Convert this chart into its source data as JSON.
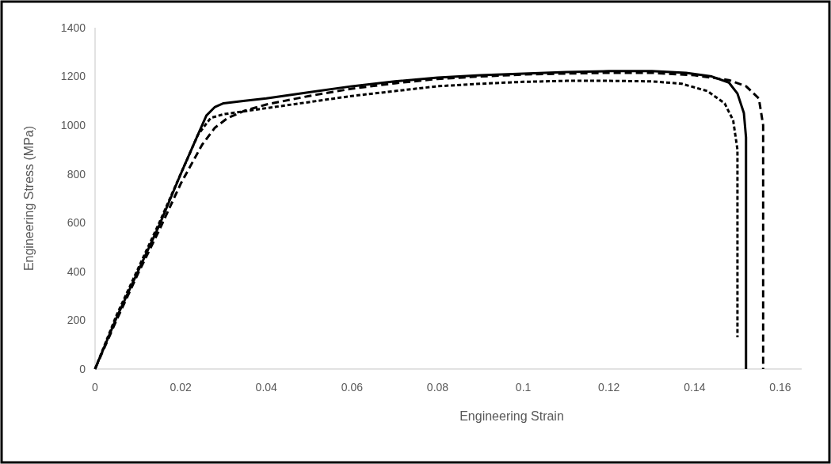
{
  "chart_data": {
    "type": "line",
    "xlabel": "Engineering Strain",
    "ylabel": "Engineering Stress (MPa)",
    "xlim": [
      0,
      0.165
    ],
    "xticks": [
      0,
      0.02,
      0.04,
      0.06,
      0.08,
      0.1,
      0.12,
      0.14,
      0.16
    ],
    "ylim": [
      0,
      1400
    ],
    "yticks": [
      0,
      200,
      400,
      600,
      800,
      1000,
      1200,
      1400
    ],
    "grid": false,
    "marker": "none",
    "series": [
      {
        "color": "#000000",
        "line_style": "solid",
        "x": [
          0,
          0.005,
          0.01,
          0.015,
          0.02,
          0.024,
          0.026,
          0.028,
          0.03,
          0.035,
          0.04,
          0.05,
          0.06,
          0.07,
          0.08,
          0.09,
          0.1,
          0.11,
          0.12,
          0.13,
          0.138,
          0.144,
          0.148,
          0.15,
          0.1515,
          0.152,
          0.152
        ],
        "values": [
          0,
          210,
          400,
          590,
          800,
          960,
          1040,
          1075,
          1090,
          1100,
          1110,
          1135,
          1160,
          1180,
          1195,
          1205,
          1212,
          1218,
          1222,
          1222,
          1215,
          1200,
          1175,
          1130,
          1050,
          950,
          0
        ]
      },
      {
        "color": "#000000",
        "line_style": "dotted",
        "x": [
          0,
          0.005,
          0.01,
          0.015,
          0.02,
          0.024,
          0.027,
          0.03,
          0.04,
          0.05,
          0.06,
          0.07,
          0.08,
          0.09,
          0.1,
          0.11,
          0.12,
          0.13,
          0.137,
          0.143,
          0.147,
          0.149,
          0.15,
          0.15
        ],
        "values": [
          0,
          220,
          410,
          600,
          800,
          960,
          1030,
          1045,
          1070,
          1095,
          1120,
          1140,
          1160,
          1170,
          1178,
          1182,
          1182,
          1180,
          1170,
          1140,
          1090,
          1020,
          900,
          130
        ]
      },
      {
        "color": "#000000",
        "line_style": "dashed",
        "x": [
          0,
          0.005,
          0.01,
          0.015,
          0.02,
          0.025,
          0.028,
          0.031,
          0.035,
          0.04,
          0.05,
          0.06,
          0.07,
          0.08,
          0.09,
          0.1,
          0.11,
          0.12,
          0.13,
          0.14,
          0.148,
          0.152,
          0.155,
          0.156,
          0.156
        ],
        "values": [
          0,
          200,
          390,
          570,
          760,
          920,
          990,
          1030,
          1060,
          1085,
          1120,
          1150,
          1172,
          1190,
          1200,
          1208,
          1212,
          1215,
          1215,
          1205,
          1185,
          1160,
          1110,
          1000,
          0
        ]
      }
    ]
  }
}
